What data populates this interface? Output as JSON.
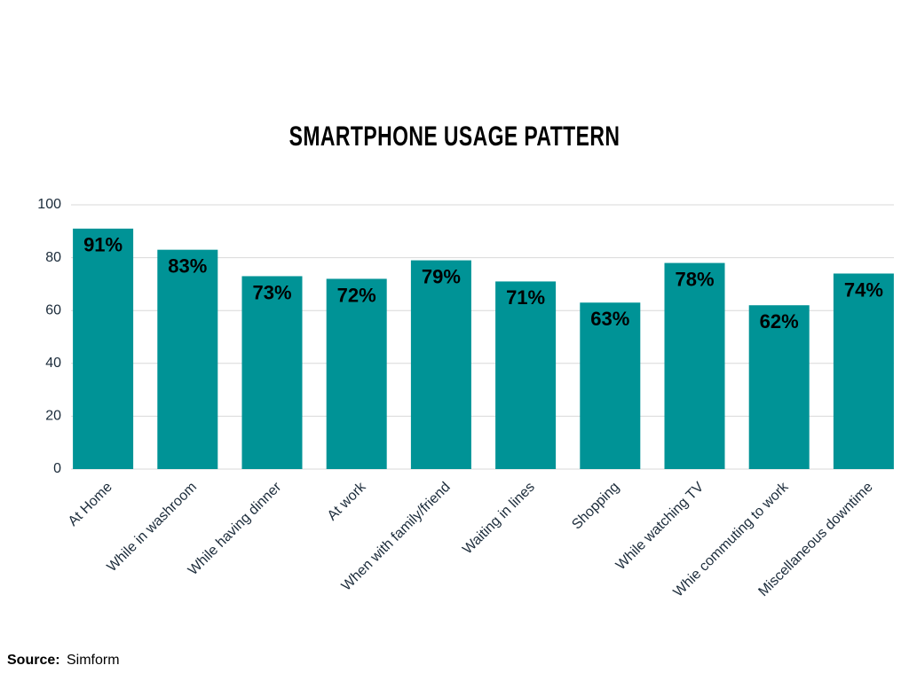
{
  "chart_data": {
    "type": "bar",
    "title": "SMARTPHONE USAGE PATTERN",
    "categories": [
      "At Home",
      "While in washroom",
      "While having dinner",
      "At work",
      "When with family/friend",
      "Waiting in lines",
      "Shopping",
      "While watching TV",
      "Whie commuting to work",
      "Miscellaneous downtime"
    ],
    "values": [
      91,
      83,
      73,
      72,
      79,
      71,
      63,
      78,
      62,
      74
    ],
    "value_labels": [
      "91%",
      "83%",
      "73%",
      "72%",
      "79%",
      "71%",
      "63%",
      "78%",
      "62%",
      "74%"
    ],
    "color": "#009396",
    "ylim": [
      0,
      100
    ],
    "yticks": [
      0,
      20,
      40,
      60,
      80,
      100
    ],
    "grid": true
  },
  "source_label": "Source:",
  "source": "Simform"
}
